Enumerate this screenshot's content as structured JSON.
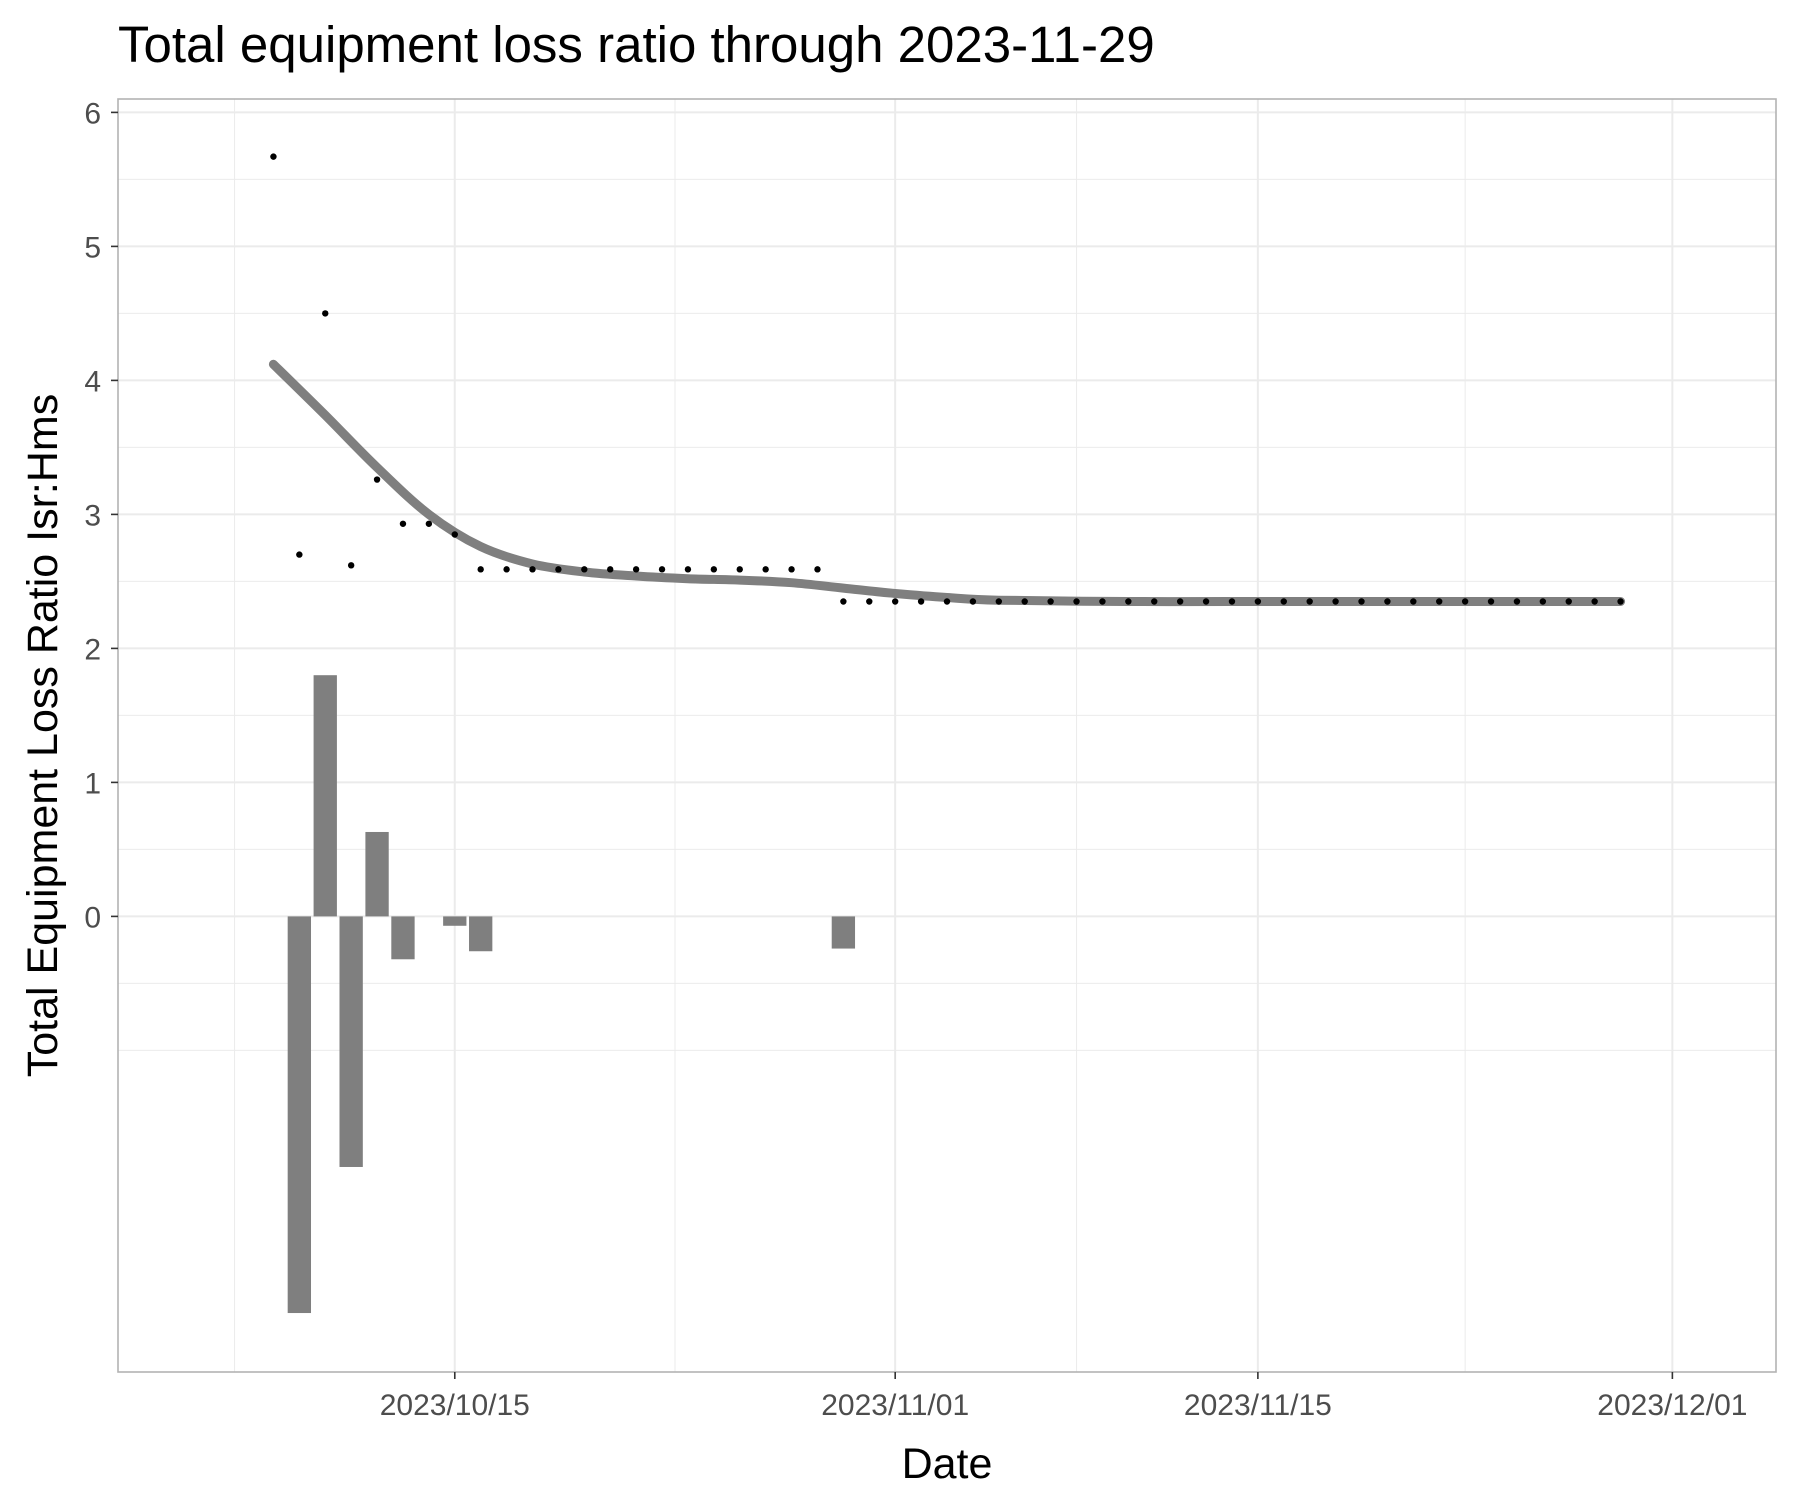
{
  "chart_data": {
    "type": "bar",
    "title": "Total equipment loss ratio through 2023-11-29",
    "xlabel": "Date",
    "ylabel": "Total Equipment Loss Ratio Isr:Hms",
    "xlim": [
      "2023-10-02",
      "2023-12-05"
    ],
    "ylim": [
      -3.4,
      6.1
    ],
    "grid": true,
    "legend": "none",
    "x_ticks": [
      {
        "date": "2023-10-15",
        "label": "2023/10/15"
      },
      {
        "date": "2023-11-01",
        "label": "2023/11/01"
      },
      {
        "date": "2023-11-15",
        "label": "2023/11/15"
      },
      {
        "date": "2023-12-01",
        "label": "2023/12/01"
      }
    ],
    "y_ticks": [
      0,
      1,
      2,
      3,
      4,
      5,
      6
    ],
    "colors": {
      "bars": "#7f7f7f",
      "smooth_line": "#7f7f7f",
      "points": "#000000",
      "grid": "#ebebeb",
      "panel_border": "#b3b3b3"
    },
    "series": [
      {
        "type": "point",
        "x": [
          "2023-10-08",
          "2023-10-09",
          "2023-10-10",
          "2023-10-11",
          "2023-10-12",
          "2023-10-13",
          "2023-10-14",
          "2023-10-15",
          "2023-10-16",
          "2023-10-17",
          "2023-10-18",
          "2023-10-19",
          "2023-10-20",
          "2023-10-21",
          "2023-10-22",
          "2023-10-23",
          "2023-10-24",
          "2023-10-25",
          "2023-10-26",
          "2023-10-27",
          "2023-10-28",
          "2023-10-29",
          "2023-10-30",
          "2023-10-31",
          "2023-11-01",
          "2023-11-02",
          "2023-11-03",
          "2023-11-04",
          "2023-11-05",
          "2023-11-06",
          "2023-11-07",
          "2023-11-08",
          "2023-11-09",
          "2023-11-10",
          "2023-11-11",
          "2023-11-12",
          "2023-11-13",
          "2023-11-14",
          "2023-11-15",
          "2023-11-16",
          "2023-11-17",
          "2023-11-18",
          "2023-11-19",
          "2023-11-20",
          "2023-11-21",
          "2023-11-22",
          "2023-11-23",
          "2023-11-24",
          "2023-11-25",
          "2023-11-26",
          "2023-11-27",
          "2023-11-28",
          "2023-11-29"
        ],
        "values": [
          5.67,
          2.7,
          4.5,
          2.62,
          3.26,
          2.93,
          2.93,
          2.85,
          2.59,
          2.59,
          2.59,
          2.59,
          2.59,
          2.59,
          2.59,
          2.59,
          2.59,
          2.59,
          2.59,
          2.59,
          2.59,
          2.59,
          2.35,
          2.35,
          2.35,
          2.35,
          2.35,
          2.35,
          2.35,
          2.35,
          2.35,
          2.35,
          2.35,
          2.35,
          2.35,
          2.35,
          2.35,
          2.35,
          2.35,
          2.35,
          2.35,
          2.35,
          2.35,
          2.35,
          2.35,
          2.35,
          2.35,
          2.35,
          2.35,
          2.35,
          2.35,
          2.35,
          2.35
        ]
      },
      {
        "type": "bar",
        "x": [
          "2023-10-09",
          "2023-10-10",
          "2023-10-11",
          "2023-10-12",
          "2023-10-13",
          "2023-10-15",
          "2023-10-16",
          "2023-10-30"
        ],
        "values": [
          -2.96,
          1.8,
          -1.87,
          0.63,
          -0.32,
          -0.07,
          -0.26,
          -0.24
        ]
      },
      {
        "type": "line",
        "x": [
          "2023-10-08",
          "2023-10-10",
          "2023-10-12",
          "2023-10-14",
          "2023-10-16",
          "2023-10-18",
          "2023-10-20",
          "2023-10-22",
          "2023-10-24",
          "2023-10-26",
          "2023-10-28",
          "2023-10-30",
          "2023-11-01",
          "2023-11-03",
          "2023-11-05",
          "2023-11-10",
          "2023-11-15",
          "2023-11-20",
          "2023-11-25",
          "2023-11-29"
        ],
        "values": [
          4.12,
          3.74,
          3.35,
          3.0,
          2.76,
          2.63,
          2.57,
          2.54,
          2.52,
          2.51,
          2.49,
          2.45,
          2.41,
          2.38,
          2.36,
          2.35,
          2.35,
          2.35,
          2.35,
          2.35
        ]
      }
    ]
  }
}
